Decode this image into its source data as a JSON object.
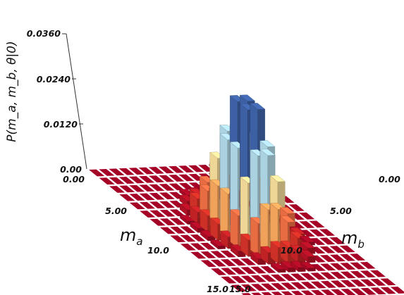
{
  "chart_data": {
    "type": "bar3d",
    "title": "",
    "zlabel": "P(m_a, m_b, θ|0)",
    "xlabel_main": "m",
    "xlabel_sub": "a",
    "ylabel_main": "m",
    "ylabel_sub": "b",
    "z_ticks": [
      "0.0360",
      "0.0240",
      "0.0120",
      "0.00"
    ],
    "a_ticks": [
      "0.00",
      "5.00",
      "10.0",
      "15.0"
    ],
    "b_ticks": [
      "0.00",
      "5.00",
      "10.0",
      "15.0"
    ],
    "grid_size": 16,
    "zlim": [
      0,
      0.036
    ],
    "center": [
      7.5,
      7.5
    ],
    "sigma": 1.7,
    "peak": 0.0375,
    "colors": {
      "ramp": [
        "#a50026",
        "#d73027",
        "#f46d43",
        "#fdae61",
        "#fee090",
        "#e0f3f8",
        "#abd9e9",
        "#74add1",
        "#4575b4",
        "#313695"
      ],
      "floor": "#a50026",
      "grid_line": "#ffffff"
    }
  }
}
